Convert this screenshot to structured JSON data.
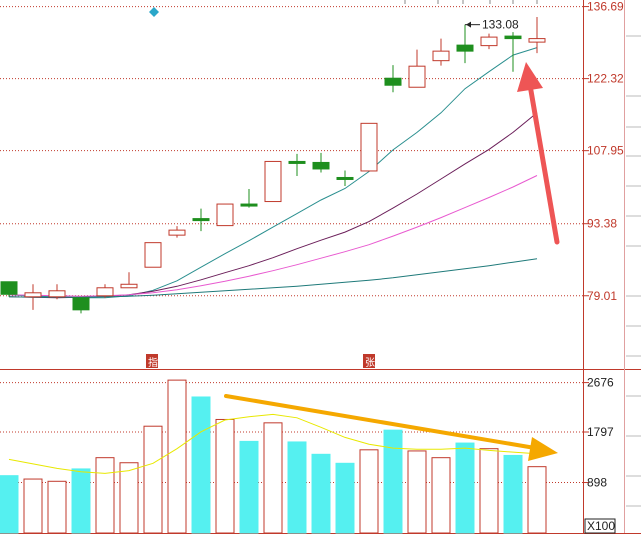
{
  "chart_data": [
    {
      "type": "candlestick",
      "ylim": [
        64.4,
        138.0
      ],
      "y_ticks": [
        "136.69",
        "122.32",
        "107.95",
        "93.38",
        "79.01"
      ],
      "y_tick_values": [
        136.69,
        122.32,
        107.95,
        93.38,
        79.01
      ],
      "grid": "dotted-horizontal",
      "annotation": {
        "label": "133.08",
        "value": 133.08,
        "candle_index": 19
      },
      "candles": [
        {
          "open": 81.8,
          "close": 79.3,
          "high": 81.8,
          "low": 78.8,
          "color": "green"
        },
        {
          "open": 78.8,
          "close": 79.6,
          "high": 81.3,
          "low": 76.2,
          "color": "red"
        },
        {
          "open": 78.8,
          "close": 80.0,
          "high": 81.3,
          "low": 78.3,
          "color": "red"
        },
        {
          "open": 78.6,
          "close": 76.2,
          "high": 78.6,
          "low": 75.5,
          "color": "green"
        },
        {
          "open": 79.0,
          "close": 80.6,
          "high": 81.3,
          "low": 78.6,
          "color": "red"
        },
        {
          "open": 80.6,
          "close": 81.3,
          "high": 83.7,
          "low": 80.6,
          "color": "red"
        },
        {
          "open": 84.7,
          "close": 89.6,
          "high": 89.6,
          "low": 84.7,
          "color": "red"
        },
        {
          "open": 91.1,
          "close": 92.1,
          "high": 92.9,
          "low": 90.6,
          "color": "red"
        },
        {
          "open": 94.4,
          "close": 94.3,
          "high": 96.4,
          "low": 91.9,
          "color": "green"
        },
        {
          "open": 93.0,
          "close": 97.3,
          "high": 97.3,
          "low": 93.0,
          "color": "red"
        },
        {
          "open": 97.3,
          "close": 97.3,
          "high": 100.3,
          "low": 96.6,
          "color": "green"
        },
        {
          "open": 97.8,
          "close": 105.8,
          "high": 105.8,
          "low": 97.8,
          "color": "red"
        },
        {
          "open": 105.8,
          "close": 105.4,
          "high": 107.3,
          "low": 102.9,
          "color": "green"
        },
        {
          "open": 105.6,
          "close": 104.3,
          "high": 107.5,
          "low": 103.6,
          "color": "green"
        },
        {
          "open": 102.6,
          "close": 102.4,
          "high": 104.0,
          "low": 100.9,
          "color": "green"
        },
        {
          "open": 103.9,
          "close": 113.4,
          "high": 113.4,
          "low": 103.9,
          "color": "red"
        },
        {
          "open": 122.4,
          "close": 121.0,
          "high": 125.0,
          "low": 119.6,
          "color": "green"
        },
        {
          "open": 120.6,
          "close": 124.8,
          "high": 128.1,
          "low": 120.6,
          "color": "red"
        },
        {
          "open": 125.9,
          "close": 127.8,
          "high": 130.3,
          "low": 124.9,
          "color": "red"
        },
        {
          "open": 129.0,
          "close": 127.8,
          "high": 133.1,
          "low": 125.4,
          "color": "green"
        },
        {
          "open": 128.9,
          "close": 130.6,
          "high": 131.3,
          "low": 128.2,
          "color": "red"
        },
        {
          "open": 130.8,
          "close": 130.3,
          "high": 131.6,
          "low": 123.7,
          "color": "green"
        },
        {
          "open": 129.6,
          "close": 130.3,
          "high": 134.6,
          "low": 127.4,
          "color": "red"
        }
      ],
      "ma_lines": [
        {
          "color": "#2a8f8f",
          "values": [
            79.2,
            78.9,
            78.8,
            78.6,
            78.6,
            79.0,
            80.1,
            82.0,
            84.7,
            87.4,
            90.0,
            92.7,
            95.4,
            98.1,
            100.4,
            103.8,
            108.1,
            111.6,
            115.5,
            120.3,
            123.7,
            127.0,
            128.5
          ]
        },
        {
          "color": "#6b1f5a",
          "values": [
            78.8,
            78.7,
            78.6,
            78.7,
            78.9,
            79.2,
            79.9,
            80.9,
            82.2,
            83.6,
            85.0,
            86.6,
            88.4,
            90.1,
            91.7,
            93.8,
            96.5,
            99.3,
            102.3,
            105.3,
            108.2,
            111.6,
            115.5
          ]
        },
        {
          "color": "#e85ad0",
          "values": [
            79.2,
            79.1,
            79.0,
            78.9,
            79.0,
            79.2,
            79.6,
            80.2,
            81.0,
            81.9,
            82.9,
            84.0,
            85.2,
            86.5,
            87.8,
            89.2,
            90.9,
            92.7,
            94.6,
            96.6,
            98.6,
            100.7,
            103.0
          ]
        },
        {
          "color": "#1f7a7a",
          "values": [
            78.8,
            78.7,
            78.7,
            78.7,
            78.8,
            78.9,
            79.1,
            79.4,
            79.7,
            80.0,
            80.3,
            80.6,
            80.9,
            81.3,
            81.7,
            82.1,
            82.6,
            83.2,
            83.8,
            84.4,
            85.0,
            85.7,
            86.4
          ]
        }
      ]
    },
    {
      "type": "bar",
      "y_unit": "X100",
      "ylim": [
        0,
        2900
      ],
      "y_ticks": [
        "2676",
        "1797",
        "898"
      ],
      "y_tick_values": [
        2676,
        1797,
        898
      ],
      "values": [
        1020,
        960,
        920,
        1140,
        1340,
        1250,
        1900,
        2720,
        2420,
        2020,
        1630,
        1960,
        1620,
        1400,
        1240,
        1480,
        1830,
        1460,
        1340,
        1600,
        1500,
        1380,
        1180
      ],
      "colors": [
        "cyan",
        "red",
        "red",
        "cyan",
        "red",
        "red",
        "red",
        "red",
        "cyan",
        "red",
        "cyan",
        "red",
        "cyan",
        "cyan",
        "cyan",
        "red",
        "cyan",
        "red",
        "red",
        "cyan",
        "red",
        "cyan",
        "red"
      ],
      "ma_line": {
        "color": "#e8e800",
        "values": [
          1310,
          1230,
          1150,
          1090,
          1060,
          1110,
          1240,
          1500,
          1800,
          2010,
          2070,
          2110,
          2050,
          1880,
          1700,
          1580,
          1510,
          1490,
          1490,
          1510,
          1470,
          1440,
          1410
        ]
      }
    }
  ],
  "colors": {
    "rise": "#c0392b",
    "fall": "#1e8f1e",
    "volume_cyan": "#55f0f0",
    "arrow_red": "#ee5555",
    "arrow_orange": "#f5a800",
    "diamond": "#2aa7c9"
  },
  "markers": {
    "left": "指",
    "right": "张"
  }
}
